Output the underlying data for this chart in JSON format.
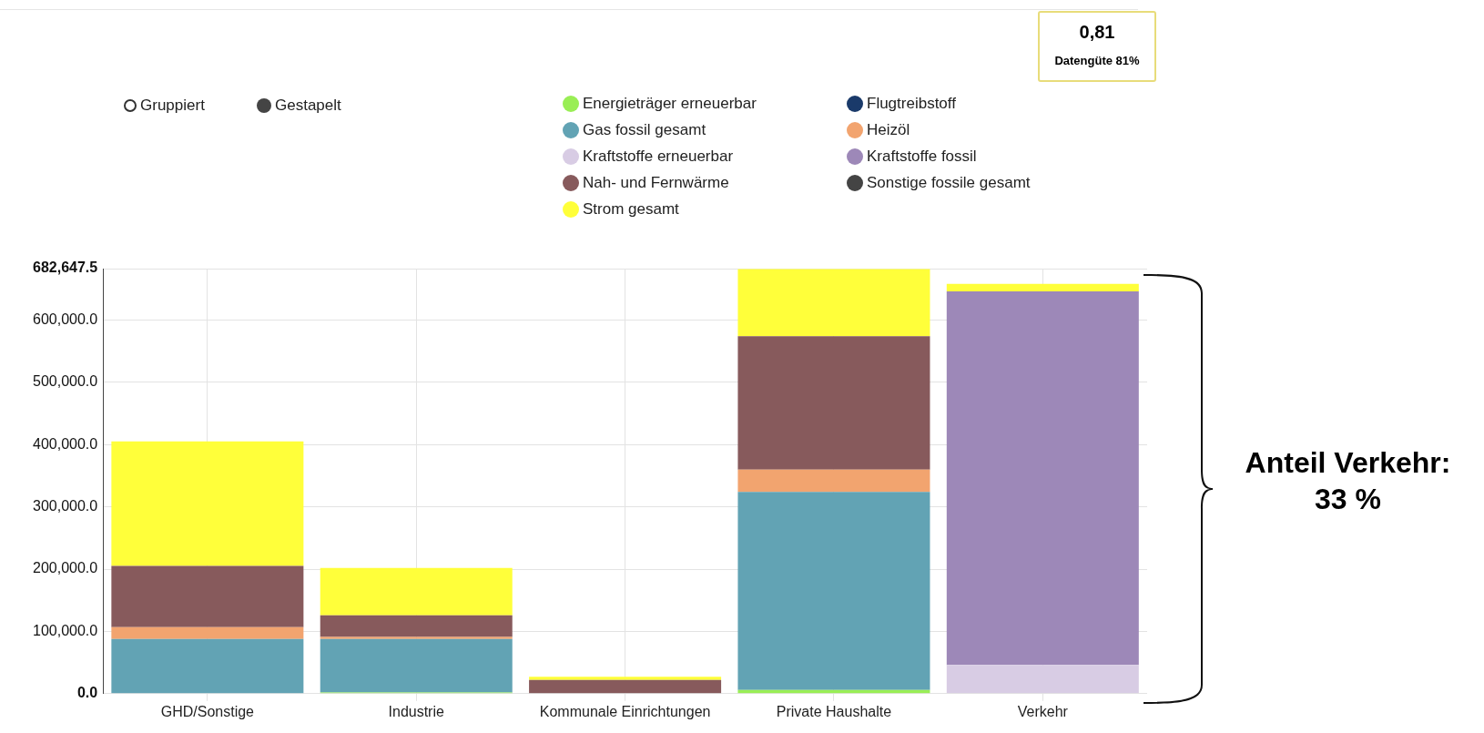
{
  "chart_data": {
    "type": "bar",
    "stacked": true,
    "legend": "top",
    "grid": true,
    "categories": [
      "GHD/Sonstige",
      "Industrie",
      "Kommunale Einrichtungen",
      "Private Haushalte",
      "Verkehr"
    ],
    "ylim": [
      0,
      682647.5
    ],
    "yticks": [
      {
        "value": 0,
        "label": "0.0"
      },
      {
        "value": 100000,
        "label": "100,000.0"
      },
      {
        "value": 200000,
        "label": "200,000.0"
      },
      {
        "value": 300000,
        "label": "300,000.0"
      },
      {
        "value": 400000,
        "label": "400,000.0"
      },
      {
        "value": 500000,
        "label": "500,000.0"
      },
      {
        "value": 600000,
        "label": "600,000.0"
      },
      {
        "value": 682647.5,
        "label": "682,647.5"
      }
    ],
    "series": [
      {
        "name": "Energieträger erneuerbar",
        "color": "#99ee55",
        "values": [
          null,
          2000,
          null,
          6000,
          null
        ]
      },
      {
        "name": "Gas fossil gesamt",
        "color": "#62a3b4",
        "values": [
          88000,
          86000,
          null,
          318000,
          null
        ]
      },
      {
        "name": "Kraftstoffe erneuerbar",
        "color": "#d8cce4",
        "values": [
          null,
          null,
          null,
          null,
          46000
        ]
      },
      {
        "name": "Heizöl",
        "color": "#f2a46f",
        "values": [
          19000,
          3000,
          null,
          36000,
          null
        ]
      },
      {
        "name": "Kraftstoffe fossil",
        "color": "#9d88b8",
        "values": [
          null,
          null,
          null,
          null,
          600000
        ]
      },
      {
        "name": "Flugtreibstoff",
        "color": "#1a3a6a",
        "values": [
          null,
          null,
          null,
          null,
          null
        ]
      },
      {
        "name": "Nah- und Fernwärme",
        "color": "#875a5c",
        "values": [
          98000,
          35000,
          22000,
          214000,
          null
        ]
      },
      {
        "name": "Sonstige fossile gesamt",
        "color": "#444444",
        "values": [
          null,
          null,
          null,
          null,
          null
        ]
      },
      {
        "name": "Strom gesamt",
        "color": "#ffff3a",
        "values": [
          200000,
          76000,
          5000,
          108000,
          12000
        ]
      }
    ],
    "annotations": [
      "Gruppiert",
      "Gestapelt",
      "0,81",
      "Datengüte 81%",
      "Anteil Verkehr: 33 %"
    ]
  }
}
